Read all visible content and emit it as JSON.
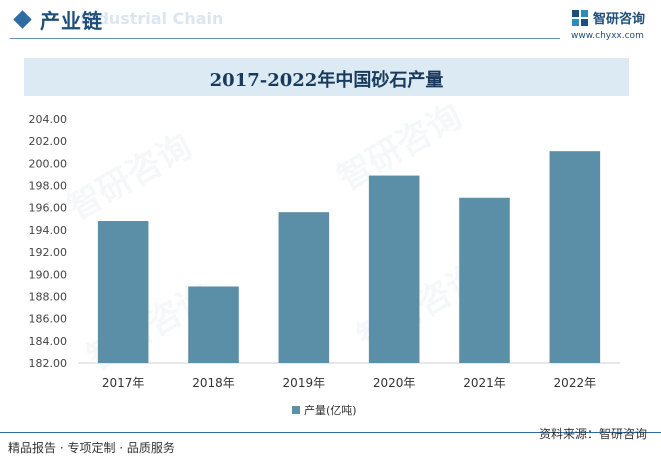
{
  "header": {
    "section_title": "产业链",
    "section_subtitle": "Industrial Chain",
    "brand_name": "智研咨询",
    "brand_url": "www.chyxx.com"
  },
  "watermark": {
    "text": "智研咨询"
  },
  "chart_data": {
    "type": "bar",
    "title": "2017-2022年中国砂石产量",
    "categories": [
      "2017年",
      "2018年",
      "2019年",
      "2020年",
      "2021年",
      "2022年"
    ],
    "series": [
      {
        "name": "产量(亿吨)",
        "values": [
          194.8,
          188.9,
          195.6,
          198.9,
          196.9,
          201.1
        ],
        "color": "#5b8fa8"
      }
    ],
    "ylim": [
      182,
      204
    ],
    "yticks": [
      "182.00",
      "184.00",
      "186.00",
      "188.00",
      "190.00",
      "192.00",
      "194.00",
      "196.00",
      "198.00",
      "200.00",
      "202.00",
      "204.00"
    ],
    "grid": false,
    "legend_position": "bottom"
  },
  "footer": {
    "left": "精品报告 · 专项定制 · 品质服务",
    "right": "资料来源：智研咨询"
  }
}
